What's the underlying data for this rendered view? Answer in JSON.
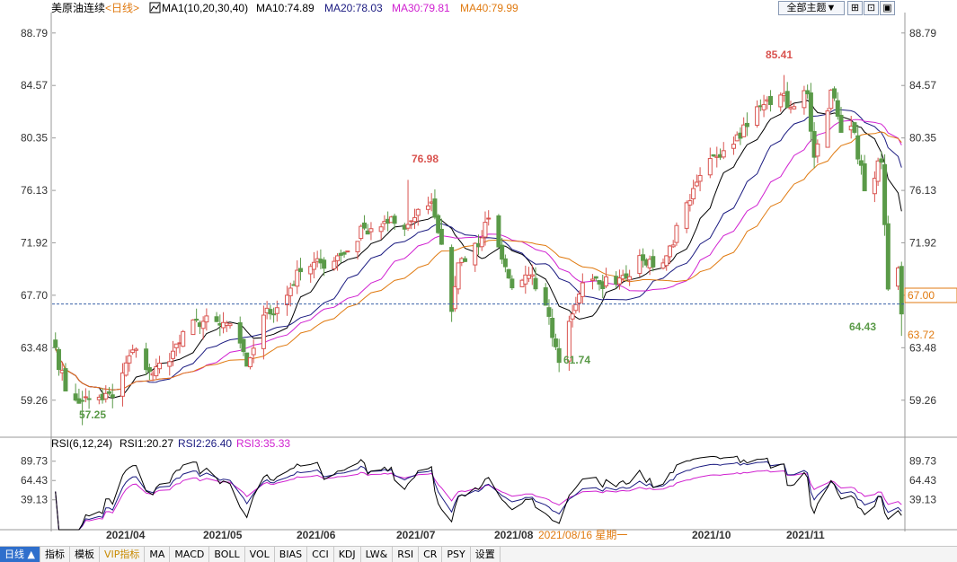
{
  "colors": {
    "up": "#d9534f",
    "down": "#5a9a48",
    "ma10": "#000000",
    "ma20": "#1a1a80",
    "ma30": "#d020d0",
    "ma40": "#e07a10",
    "grid": "#d0d0d0",
    "price_line": "#3a62a8",
    "rsi1": "#000000",
    "rsi2": "#1a1a80",
    "rsi3": "#d020d0"
  },
  "header": {
    "instrument": "美原油连续",
    "period": "<日线>",
    "ma_title": "MA1(10,20,30,40)",
    "ma10": "MA10:74.89",
    "ma20": "MA20:78.03",
    "ma30": "MA30:79.81",
    "ma40": "MA40:79.99",
    "theme_button": "全部主题▼",
    "tool_icons": [
      "grid-icon",
      "expand-icon",
      "export-icon"
    ]
  },
  "rsi_header": {
    "title": "RSI(6,12,24)",
    "rsi1": "RSI1:20.27",
    "rsi2": "RSI2:26.40",
    "rsi3": "RSI3:35.33"
  },
  "price_axis": {
    "ticks": [
      "88.79",
      "84.57",
      "80.35",
      "76.13",
      "71.92",
      "67.70",
      "63.48",
      "59.26"
    ],
    "current_price": "67.00",
    "marker_label": "63.72"
  },
  "rsi_axis": {
    "ticks": [
      "89.73",
      "64.43",
      "39.13"
    ]
  },
  "annotations": {
    "low1": "57.25",
    "high1": "76.98",
    "low2": "61.74",
    "high2": "85.41",
    "last_low": "64.43"
  },
  "date_axis": {
    "labels": [
      "2021/04",
      "2021/05",
      "2021/06",
      "2021/07",
      "2021/08",
      "2021/10",
      "2021/11"
    ],
    "cursor": "2021/08/16 星期一"
  },
  "bottom_tabs": {
    "period": "日线 ▲",
    "items": [
      "指标",
      "模板",
      "VIP指标",
      "MA",
      "MACD",
      "BOLL",
      "VOL",
      "BIAS",
      "CCI",
      "KDJ",
      "LW&",
      "RSI",
      "CR",
      "PSY",
      "设置"
    ]
  },
  "chart_data": {
    "type": "candlestick",
    "title": "美原油连续",
    "ylim": [
      56.5,
      90.0
    ],
    "y_ticks": [
      88.79,
      84.57,
      80.35,
      76.13,
      71.92,
      67.7,
      63.48,
      59.26
    ],
    "close_anchors": [
      {
        "date": "2021-03-23",
        "close": 63.5
      },
      {
        "date": "2021-03-26",
        "close": 60.0
      },
      {
        "date": "2021-03-31",
        "close": 59.2
      },
      {
        "date": "2021-04-05",
        "close": 59.5
      },
      {
        "date": "2021-04-09",
        "close": 59.5
      },
      {
        "date": "2021-04-15",
        "close": 63.3
      },
      {
        "date": "2021-04-21",
        "close": 61.4
      },
      {
        "date": "2021-04-27",
        "close": 63.2
      },
      {
        "date": "2021-05-04",
        "close": 65.7
      },
      {
        "date": "2021-05-11",
        "close": 65.3
      },
      {
        "date": "2021-05-14",
        "close": 65.4
      },
      {
        "date": "2021-05-19",
        "close": 62.0
      },
      {
        "date": "2021-05-24",
        "close": 66.1
      },
      {
        "date": "2021-05-28",
        "close": 66.7
      },
      {
        "date": "2021-06-04",
        "close": 69.6
      },
      {
        "date": "2021-06-10",
        "close": 70.3
      },
      {
        "date": "2021-06-17",
        "close": 71.0
      },
      {
        "date": "2021-06-23",
        "close": 73.1
      },
      {
        "date": "2021-06-30",
        "close": 73.5
      },
      {
        "date": "2021-07-06",
        "close": 73.4
      },
      {
        "date": "2021-07-09",
        "close": 74.6
      },
      {
        "date": "2021-07-13",
        "close": 75.2
      },
      {
        "date": "2021-07-16",
        "close": 71.8
      },
      {
        "date": "2021-07-19",
        "close": 66.4
      },
      {
        "date": "2021-07-21",
        "close": 70.3
      },
      {
        "date": "2021-07-27",
        "close": 71.6
      },
      {
        "date": "2021-07-30",
        "close": 73.9
      },
      {
        "date": "2021-08-03",
        "close": 70.6
      },
      {
        "date": "2021-08-06",
        "close": 68.3
      },
      {
        "date": "2021-08-11",
        "close": 69.3
      },
      {
        "date": "2021-08-16",
        "close": 66.9
      },
      {
        "date": "2021-08-20",
        "close": 62.3
      },
      {
        "date": "2021-08-23",
        "close": 65.6
      },
      {
        "date": "2021-08-27",
        "close": 68.7
      },
      {
        "date": "2021-09-01",
        "close": 68.6
      },
      {
        "date": "2021-09-08",
        "close": 69.3
      },
      {
        "date": "2021-09-14",
        "close": 70.5
      },
      {
        "date": "2021-09-20",
        "close": 70.3
      },
      {
        "date": "2021-09-28",
        "close": 75.3
      },
      {
        "date": "2021-10-05",
        "close": 78.9
      },
      {
        "date": "2021-10-12",
        "close": 80.6
      },
      {
        "date": "2021-10-19",
        "close": 82.9
      },
      {
        "date": "2021-10-25",
        "close": 83.8
      },
      {
        "date": "2021-10-28",
        "close": 82.8
      },
      {
        "date": "2021-11-02",
        "close": 83.9
      },
      {
        "date": "2021-11-04",
        "close": 78.8
      },
      {
        "date": "2021-11-09",
        "close": 84.2
      },
      {
        "date": "2021-11-12",
        "close": 80.8
      },
      {
        "date": "2021-11-16",
        "close": 80.8
      },
      {
        "date": "2021-11-19",
        "close": 76.1
      },
      {
        "date": "2021-11-24",
        "close": 78.4
      },
      {
        "date": "2021-11-26",
        "close": 68.2
      },
      {
        "date": "2021-11-29",
        "close": 69.9
      },
      {
        "date": "2021-11-30",
        "close": 66.2
      }
    ],
    "extremes": [
      {
        "label": "57.25",
        "value": 57.25,
        "date": "2021-03-31"
      },
      {
        "label": "76.98",
        "value": 76.98,
        "date": "2021-07-06"
      },
      {
        "label": "61.74",
        "value": 61.74,
        "date": "2021-08-20"
      },
      {
        "label": "85.41",
        "value": 85.41,
        "date": "2021-10-26"
      },
      {
        "label": "64.43",
        "value": 64.43,
        "date": "2021-11-30"
      }
    ],
    "ma_latest": {
      "MA10": 74.89,
      "MA20": 78.03,
      "MA30": 79.81,
      "MA40": 79.99
    },
    "rsi_latest": {
      "RSI1": 20.27,
      "RSI2": 26.4,
      "RSI3": 35.33
    },
    "rsi_ticks": [
      89.73,
      64.43,
      39.13
    ],
    "current_price": 67.0
  }
}
